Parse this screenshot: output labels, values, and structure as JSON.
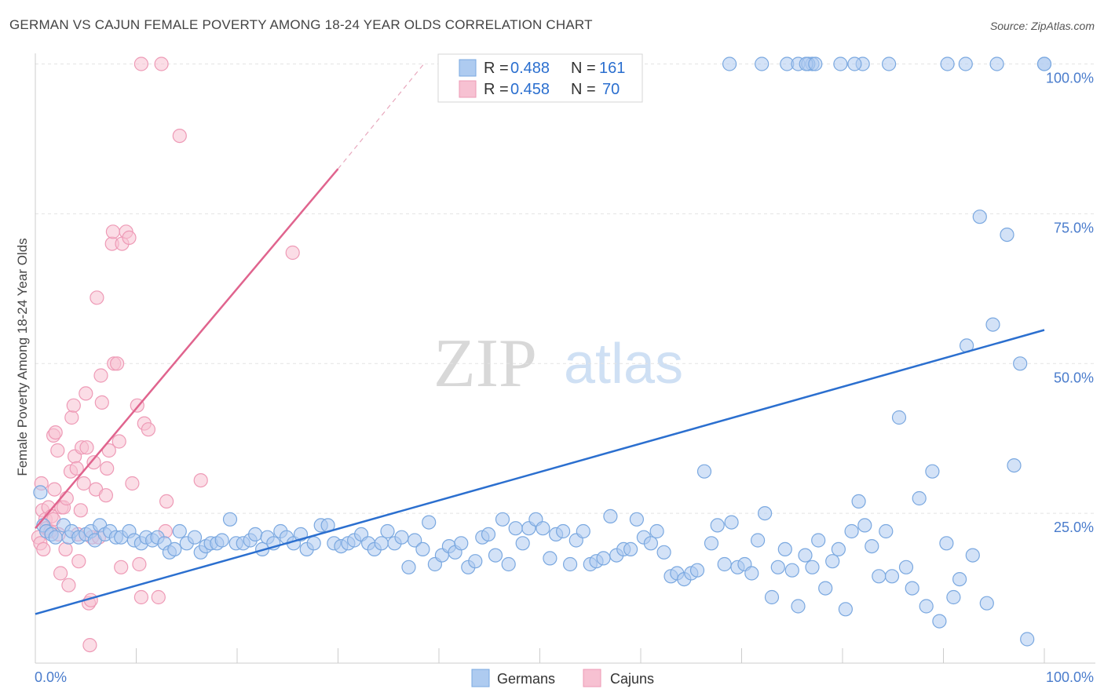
{
  "title": "GERMAN VS CAJUN FEMALE POVERTY AMONG 18-24 YEAR OLDS CORRELATION CHART",
  "source": "Source: ZipAtlas.com",
  "watermark": {
    "zip": "ZIP",
    "atlas": "atlas"
  },
  "colors": {
    "blue_fill": "#aecbf0",
    "blue_stroke": "#7aa8e0",
    "blue_line": "#2b6fcf",
    "pink_fill": "#f7c1d2",
    "pink_stroke": "#ee9ab6",
    "pink_line": "#e0648e",
    "tick_text": "#4a7ccc",
    "grid": "#e3e3e3"
  },
  "legend": {
    "rows": [
      {
        "r_label": "R = ",
        "r_value": "0.488",
        "n_label": "N = ",
        "n_value": "161"
      },
      {
        "r_label": "R = ",
        "r_value": "0.458",
        "n_label": "N = ",
        "n_value": "70"
      }
    ]
  },
  "chart_data": {
    "type": "scatter",
    "title": "GERMAN VS CAJUN FEMALE POVERTY AMONG 18-24 YEAR OLDS CORRELATION CHART",
    "xlabel": "",
    "ylabel": "Female Poverty Among 18-24 Year Olds",
    "xlim": [
      0,
      100
    ],
    "ylim": [
      0,
      102
    ],
    "x_tick_labels": [
      "0.0%",
      "100.0%"
    ],
    "y_ticks": [
      25,
      50,
      75,
      100
    ],
    "y_tick_labels": [
      "25.0%",
      "50.0%",
      "75.0%",
      "100.0%"
    ],
    "grid": true,
    "legend_position": "bottom",
    "series": [
      {
        "name": "Germans",
        "r": 0.488,
        "n": 161,
        "trend": {
          "x": [
            0,
            100
          ],
          "y": [
            8.2,
            55.6
          ]
        },
        "points": [
          [
            0.5,
            28.5
          ],
          [
            0.8,
            23
          ],
          [
            1.1,
            22
          ],
          [
            1.6,
            21.5
          ],
          [
            2,
            21
          ],
          [
            2.8,
            23
          ],
          [
            3.3,
            21
          ],
          [
            3.6,
            22
          ],
          [
            4.3,
            21
          ],
          [
            5,
            21.5
          ],
          [
            5.5,
            22
          ],
          [
            5.9,
            20.5
          ],
          [
            6.4,
            23
          ],
          [
            6.9,
            21.5
          ],
          [
            7.4,
            22
          ],
          [
            8,
            21
          ],
          [
            8.5,
            21
          ],
          [
            9.3,
            22
          ],
          [
            9.8,
            20.5
          ],
          [
            10.5,
            20
          ],
          [
            11,
            21
          ],
          [
            11.6,
            20.5
          ],
          [
            12.1,
            21
          ],
          [
            12.8,
            20
          ],
          [
            13.3,
            18.5
          ],
          [
            13.8,
            19
          ],
          [
            14.3,
            22
          ],
          [
            15,
            20
          ],
          [
            15.8,
            21
          ],
          [
            16.4,
            18.5
          ],
          [
            16.9,
            19.5
          ],
          [
            17.4,
            20
          ],
          [
            18,
            20
          ],
          [
            18.5,
            20.5
          ],
          [
            19.3,
            24
          ],
          [
            19.9,
            20
          ],
          [
            20.6,
            20
          ],
          [
            21.3,
            20.5
          ],
          [
            21.8,
            21.5
          ],
          [
            22.5,
            19
          ],
          [
            23,
            21
          ],
          [
            23.6,
            20
          ],
          [
            24.3,
            22
          ],
          [
            24.9,
            21
          ],
          [
            25.6,
            20
          ],
          [
            26.3,
            21.5
          ],
          [
            26.9,
            19
          ],
          [
            27.6,
            20
          ],
          [
            28.3,
            23
          ],
          [
            29,
            23
          ],
          [
            29.6,
            20
          ],
          [
            30.3,
            19.5
          ],
          [
            31,
            20
          ],
          [
            31.6,
            20.5
          ],
          [
            32.3,
            21.5
          ],
          [
            33,
            20
          ],
          [
            33.6,
            19
          ],
          [
            34.3,
            20
          ],
          [
            34.9,
            22
          ],
          [
            35.6,
            20
          ],
          [
            36.3,
            21
          ],
          [
            37,
            16
          ],
          [
            37.6,
            20.5
          ],
          [
            38.4,
            19
          ],
          [
            39,
            23.5
          ],
          [
            39.6,
            16.5
          ],
          [
            40.3,
            18
          ],
          [
            41,
            19.5
          ],
          [
            41.6,
            18.5
          ],
          [
            42.2,
            20
          ],
          [
            42.9,
            16
          ],
          [
            43.6,
            17
          ],
          [
            44.3,
            21
          ],
          [
            44.9,
            21.5
          ],
          [
            45.6,
            18
          ],
          [
            46.3,
            24
          ],
          [
            46.9,
            16.5
          ],
          [
            47.6,
            22.5
          ],
          [
            48.3,
            20
          ],
          [
            48.9,
            22.5
          ],
          [
            49.6,
            24
          ],
          [
            50.3,
            22.5
          ],
          [
            51,
            17.5
          ],
          [
            51.6,
            21.5
          ],
          [
            52.3,
            22
          ],
          [
            53,
            16.5
          ],
          [
            53.6,
            20.5
          ],
          [
            54.3,
            22
          ],
          [
            55,
            16.5
          ],
          [
            55.6,
            17
          ],
          [
            56.3,
            17.5
          ],
          [
            57,
            24.5
          ],
          [
            57.6,
            18
          ],
          [
            58.3,
            19
          ],
          [
            59,
            19
          ],
          [
            59.6,
            24
          ],
          [
            60.3,
            21
          ],
          [
            61,
            20
          ],
          [
            61.6,
            22
          ],
          [
            62.3,
            18.5
          ],
          [
            63,
            14.5
          ],
          [
            63.6,
            15
          ],
          [
            64.3,
            14
          ],
          [
            65,
            15
          ],
          [
            65.6,
            15.5
          ],
          [
            66.3,
            32
          ],
          [
            67,
            20
          ],
          [
            67.6,
            23
          ],
          [
            68.3,
            16.5
          ],
          [
            69,
            23.5
          ],
          [
            69.6,
            16
          ],
          [
            70.3,
            16.5
          ],
          [
            71,
            15
          ],
          [
            71.6,
            20.5
          ],
          [
            72.3,
            25
          ],
          [
            73,
            11
          ],
          [
            73.6,
            16
          ],
          [
            74.3,
            19
          ],
          [
            75,
            15.5
          ],
          [
            75.6,
            9.5
          ],
          [
            76.3,
            18
          ],
          [
            77,
            16
          ],
          [
            77.6,
            20.5
          ],
          [
            78.3,
            12.5
          ],
          [
            79,
            17
          ],
          [
            79.6,
            19
          ],
          [
            80.3,
            9
          ],
          [
            80.9,
            22
          ],
          [
            81.6,
            27
          ],
          [
            82.2,
            23
          ],
          [
            82.9,
            19.5
          ],
          [
            83.6,
            14.5
          ],
          [
            84.3,
            22
          ],
          [
            84.9,
            14.5
          ],
          [
            85.6,
            41
          ],
          [
            86.3,
            16
          ],
          [
            86.9,
            12.5
          ],
          [
            87.6,
            27.5
          ],
          [
            88.3,
            9.5
          ],
          [
            88.9,
            32
          ],
          [
            89.6,
            7
          ],
          [
            90.3,
            20
          ],
          [
            91,
            11
          ],
          [
            91.6,
            14
          ],
          [
            92.3,
            53
          ],
          [
            92.9,
            18
          ],
          [
            93.6,
            74.5
          ],
          [
            94.3,
            10
          ],
          [
            94.9,
            56.5
          ],
          [
            96.3,
            71.5
          ],
          [
            97,
            33
          ],
          [
            97.6,
            50
          ],
          [
            98.3,
            4
          ],
          [
            72,
            100
          ],
          [
            74.5,
            100
          ],
          [
            75.6,
            100
          ],
          [
            77,
            100
          ],
          [
            79.8,
            100
          ],
          [
            82,
            100
          ],
          [
            84.6,
            100
          ],
          [
            90.4,
            100
          ],
          [
            92.2,
            100
          ],
          [
            95.3,
            100
          ],
          [
            100,
            100
          ],
          [
            100,
            100
          ],
          [
            68.8,
            100
          ],
          [
            76.6,
            100
          ],
          [
            76.4,
            100
          ],
          [
            81.2,
            100
          ],
          [
            77.3,
            100
          ]
        ]
      },
      {
        "name": "Cajuns",
        "r": 0.458,
        "n": 70,
        "trend": {
          "x": [
            0,
            30
          ],
          "y": [
            22.5,
            82.5
          ]
        },
        "trend_dashed": {
          "x": [
            30,
            38.5
          ],
          "y": [
            82.5,
            100
          ]
        },
        "points": [
          [
            0.3,
            21
          ],
          [
            0.5,
            20
          ],
          [
            0.6,
            30
          ],
          [
            0.7,
            25.5
          ],
          [
            0.8,
            19
          ],
          [
            1,
            24
          ],
          [
            1.1,
            22.5
          ],
          [
            1.3,
            26
          ],
          [
            1.5,
            22
          ],
          [
            1.6,
            24.5
          ],
          [
            1.8,
            38
          ],
          [
            1.9,
            29
          ],
          [
            2,
            38.5
          ],
          [
            2.2,
            35.5
          ],
          [
            2.3,
            21.5
          ],
          [
            2.5,
            15
          ],
          [
            2.6,
            26
          ],
          [
            2.8,
            26
          ],
          [
            3,
            19
          ],
          [
            3.1,
            27.5
          ],
          [
            3.3,
            13
          ],
          [
            3.5,
            32
          ],
          [
            3.6,
            41
          ],
          [
            3.8,
            43
          ],
          [
            3.9,
            34.5
          ],
          [
            4.1,
            32.5
          ],
          [
            4.3,
            17
          ],
          [
            4.5,
            25.5
          ],
          [
            4.6,
            36
          ],
          [
            4.8,
            30
          ],
          [
            5,
            45
          ],
          [
            5.1,
            36
          ],
          [
            5.3,
            10
          ],
          [
            5.4,
            3
          ],
          [
            5.5,
            10.5
          ],
          [
            5.6,
            21
          ],
          [
            5.8,
            33.5
          ],
          [
            6,
            29
          ],
          [
            6.1,
            61
          ],
          [
            6.3,
            21
          ],
          [
            6.5,
            48
          ],
          [
            6.6,
            43.5
          ],
          [
            7,
            28
          ],
          [
            7.1,
            32.5
          ],
          [
            7.3,
            35.5
          ],
          [
            7.6,
            70
          ],
          [
            7.7,
            72
          ],
          [
            7.8,
            50
          ],
          [
            8.1,
            50
          ],
          [
            8.3,
            37
          ],
          [
            8.5,
            16
          ],
          [
            8.6,
            70
          ],
          [
            9,
            72
          ],
          [
            9.3,
            71
          ],
          [
            9.6,
            30
          ],
          [
            10.1,
            43
          ],
          [
            10.3,
            16.5
          ],
          [
            10.5,
            11
          ],
          [
            10.8,
            40
          ],
          [
            11.2,
            39
          ],
          [
            12.2,
            11
          ],
          [
            12.9,
            22
          ],
          [
            13,
            27
          ],
          [
            14.3,
            88
          ],
          [
            16.4,
            30.5
          ],
          [
            25.5,
            68.5
          ],
          [
            10.5,
            100
          ],
          [
            12.5,
            100
          ],
          [
            1.8,
            24
          ],
          [
            4.2,
            21.5
          ]
        ]
      }
    ]
  }
}
